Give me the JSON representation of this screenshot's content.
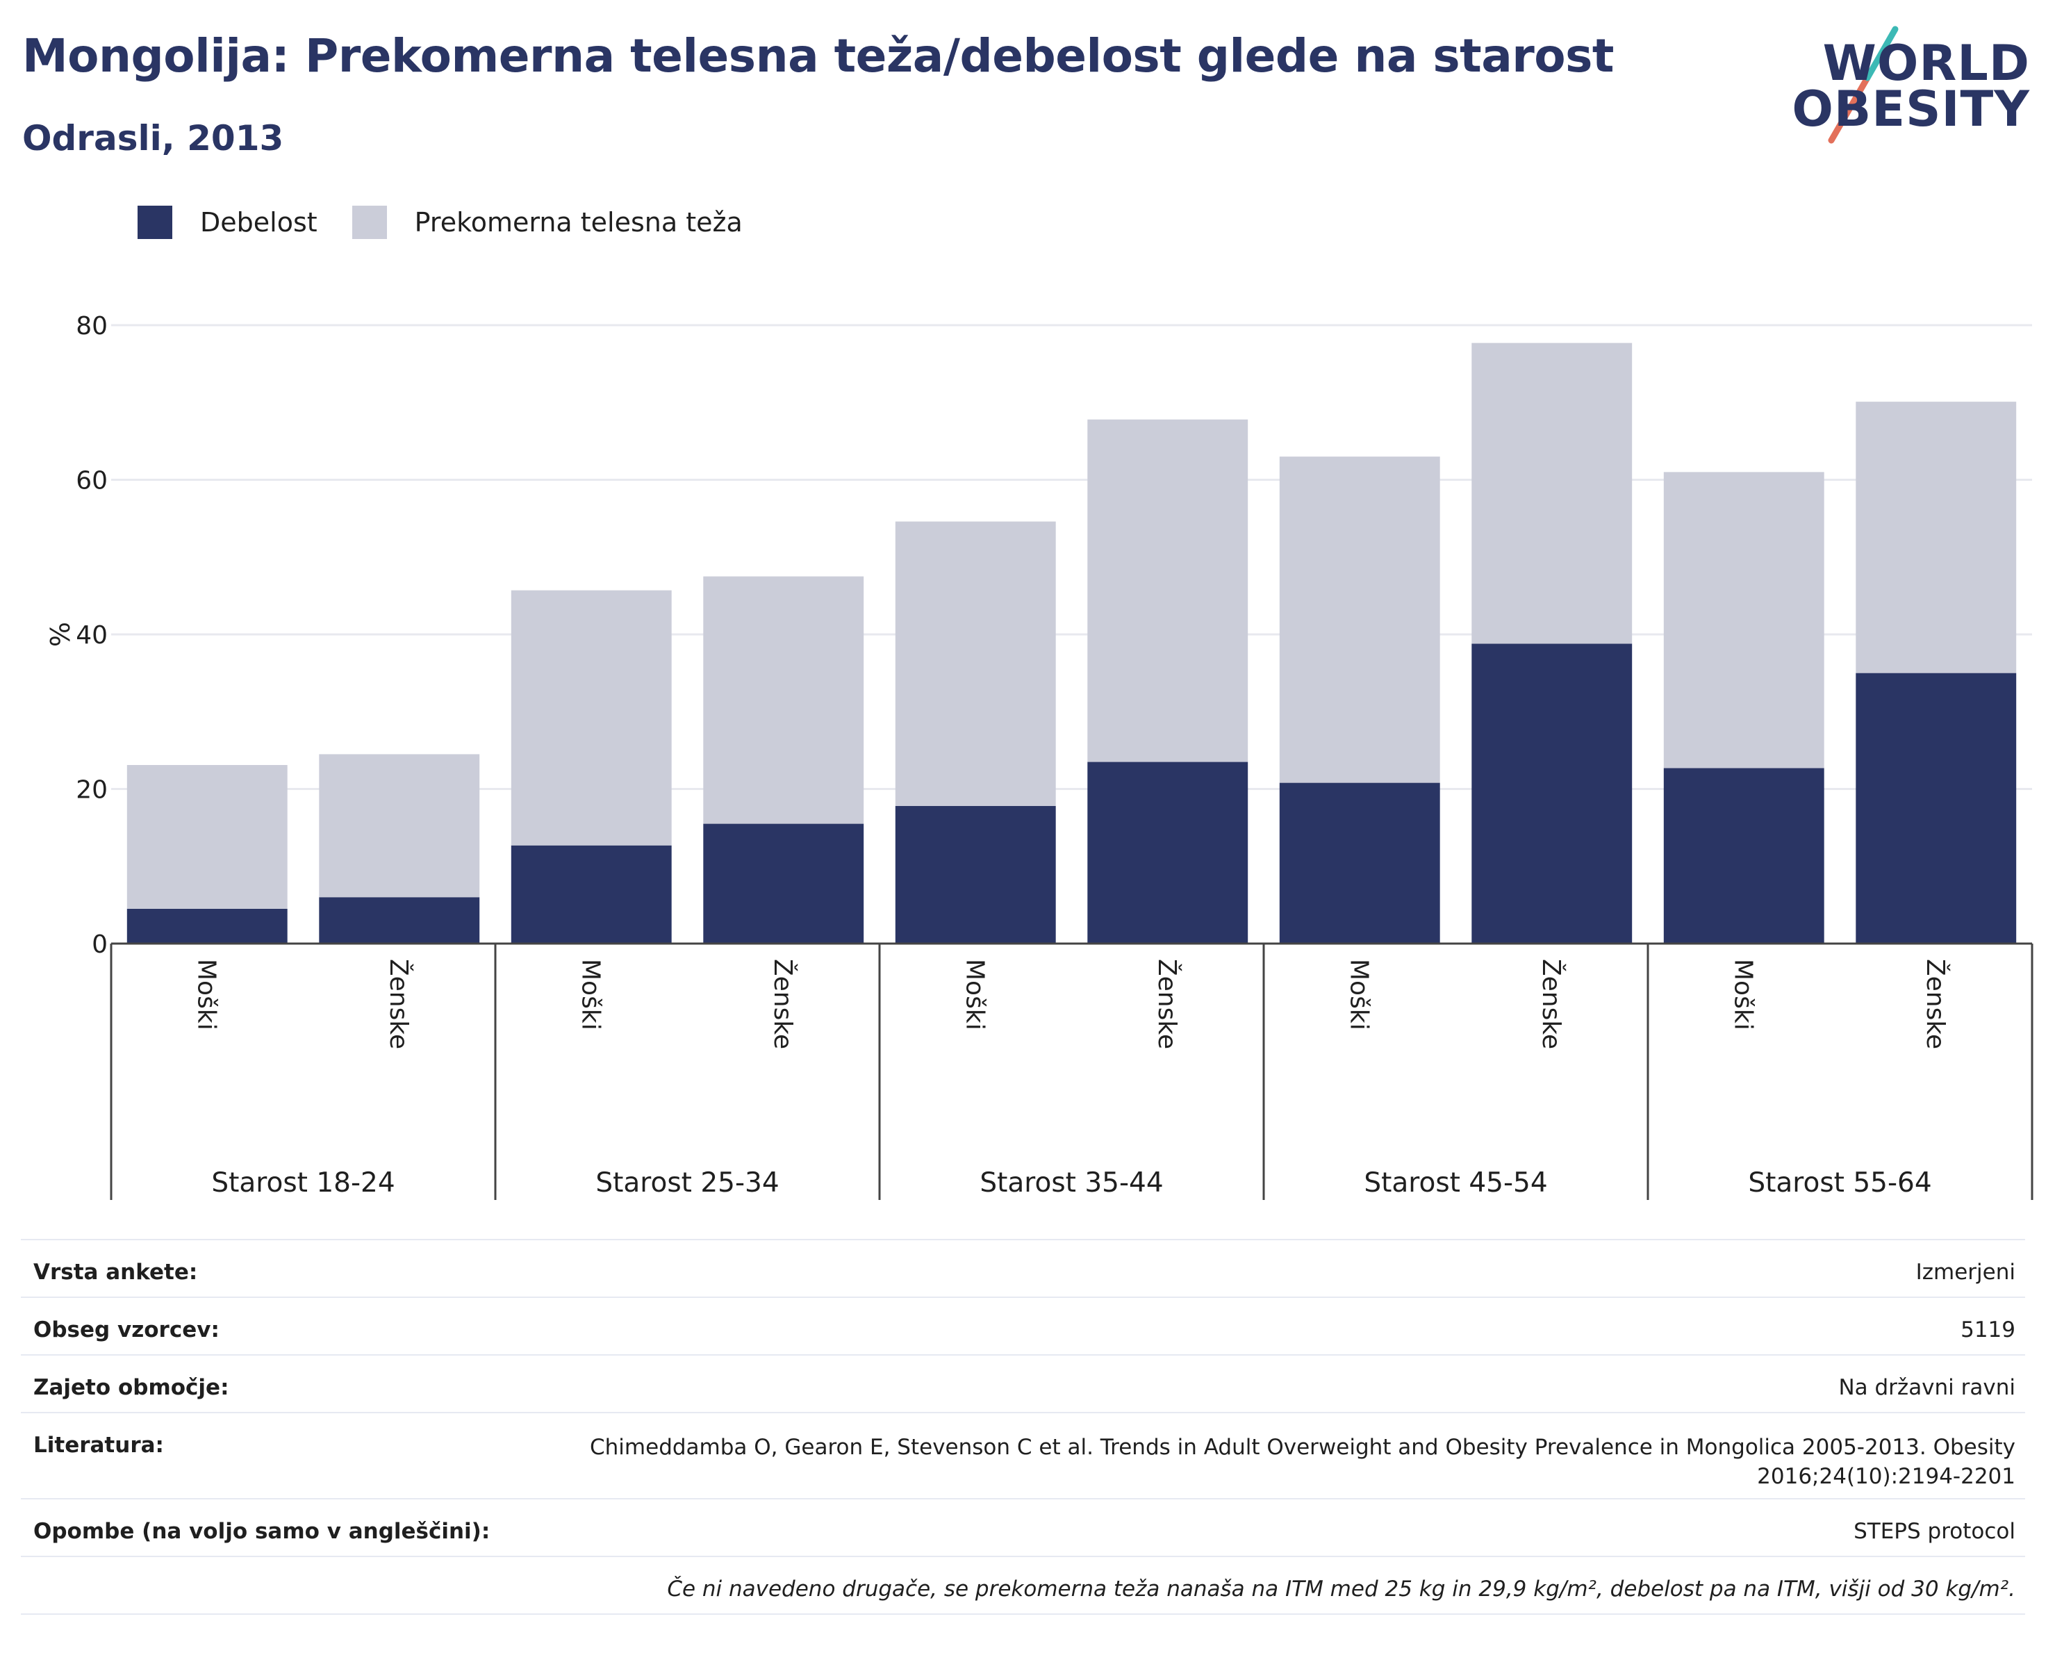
{
  "title": "Mongolija: Prekomerna telesna teža/debelost glede na starost",
  "subtitle": "Odrasli, 2013",
  "logo": {
    "line1": "WORLD",
    "line2": "OBESITY"
  },
  "legend": [
    {
      "label": "Debelost",
      "color": "#2a3564"
    },
    {
      "label": "Prekomerna telesna teža",
      "color": "#cbcdd9"
    }
  ],
  "chart_data": {
    "type": "bar",
    "stacked": true,
    "ylabel": "%",
    "ylim": [
      0,
      80
    ],
    "yticks": [
      0,
      20,
      40,
      60,
      80
    ],
    "grid": true,
    "legend_position": "top-left",
    "groups": [
      "Starost 18-24",
      "Starost 25-34",
      "Starost 35-44",
      "Starost 45-54",
      "Starost 55-64"
    ],
    "categories": [
      "Moški",
      "Ženske",
      "Moški",
      "Ženske",
      "Moški",
      "Ženske",
      "Moški",
      "Ženske",
      "Moški",
      "Ženske"
    ],
    "series": [
      {
        "name": "Debelost",
        "color": "#2a3564",
        "values": [
          4.5,
          6.0,
          12.7,
          15.5,
          17.8,
          23.5,
          20.8,
          38.8,
          22.7,
          35.0
        ]
      },
      {
        "name": "Prekomerna telesna teža",
        "color": "#cbcdd9",
        "values": [
          18.6,
          18.5,
          33.0,
          32.0,
          36.8,
          44.3,
          42.2,
          38.9,
          38.3,
          35.1
        ]
      }
    ]
  },
  "meta": {
    "rows": [
      {
        "label": "Vrsta ankete:",
        "value": "Izmerjeni"
      },
      {
        "label": "Obseg vzorcev:",
        "value": "5119"
      },
      {
        "label": "Zajeto območje:",
        "value": "Na državni ravni"
      },
      {
        "label": "Literatura:",
        "value": "Chimeddamba O, Gearon E, Stevenson C et al. Trends in Adult Overweight and Obesity Prevalence in Mongolica 2005-2013. Obesity 2016;24(10):2194-2201"
      },
      {
        "label": "Opombe (na voljo samo v angleščini):",
        "value": "STEPS protocol"
      }
    ],
    "note": "Če ni navedeno drugače, se prekomerna teža nanaša na ITM med 25 kg in 29,9 kg/m², debelost pa na ITM, višji od 30 kg/m²."
  }
}
